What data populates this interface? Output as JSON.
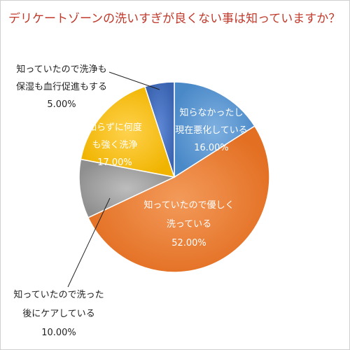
{
  "title": "デリケートゾーンの洗いすぎが良くない事は知っていますか？",
  "chart_data": {
    "type": "pie",
    "title": "デリケートゾーンの洗いすぎが良くない事は知っていますか？",
    "start_angle_deg": 0,
    "direction": "clockwise",
    "slices": [
      {
        "label_lines": [
          "知らなかったし",
          "現在悪化している"
        ],
        "value_text": "16.00%",
        "value": 16,
        "color": "#5b9bd5",
        "label_color": "#ffffff"
      },
      {
        "label_lines": [
          "知っていたので優しく",
          "洗っている"
        ],
        "value_text": "52.00%",
        "value": 52,
        "color": "#ed7d31",
        "label_color": "#ffffff"
      },
      {
        "label_lines": [
          "知っていたので洗った",
          "後にケアしている"
        ],
        "value_text": "10.00%",
        "value": 10,
        "color": "#a5a5a5",
        "label_color": "#222222"
      },
      {
        "label_lines": [
          "知らずに何度",
          "も強く洗浄"
        ],
        "value_text": "17.00%",
        "value": 17,
        "color": "#ffc000",
        "label_color": "#ffffff"
      },
      {
        "label_lines": [
          "知っていたので洗浄も",
          "保湿も血行促進もする"
        ],
        "value_text": "5.00%",
        "value": 5,
        "color": "#4472c4",
        "label_color": "#222222"
      }
    ]
  }
}
